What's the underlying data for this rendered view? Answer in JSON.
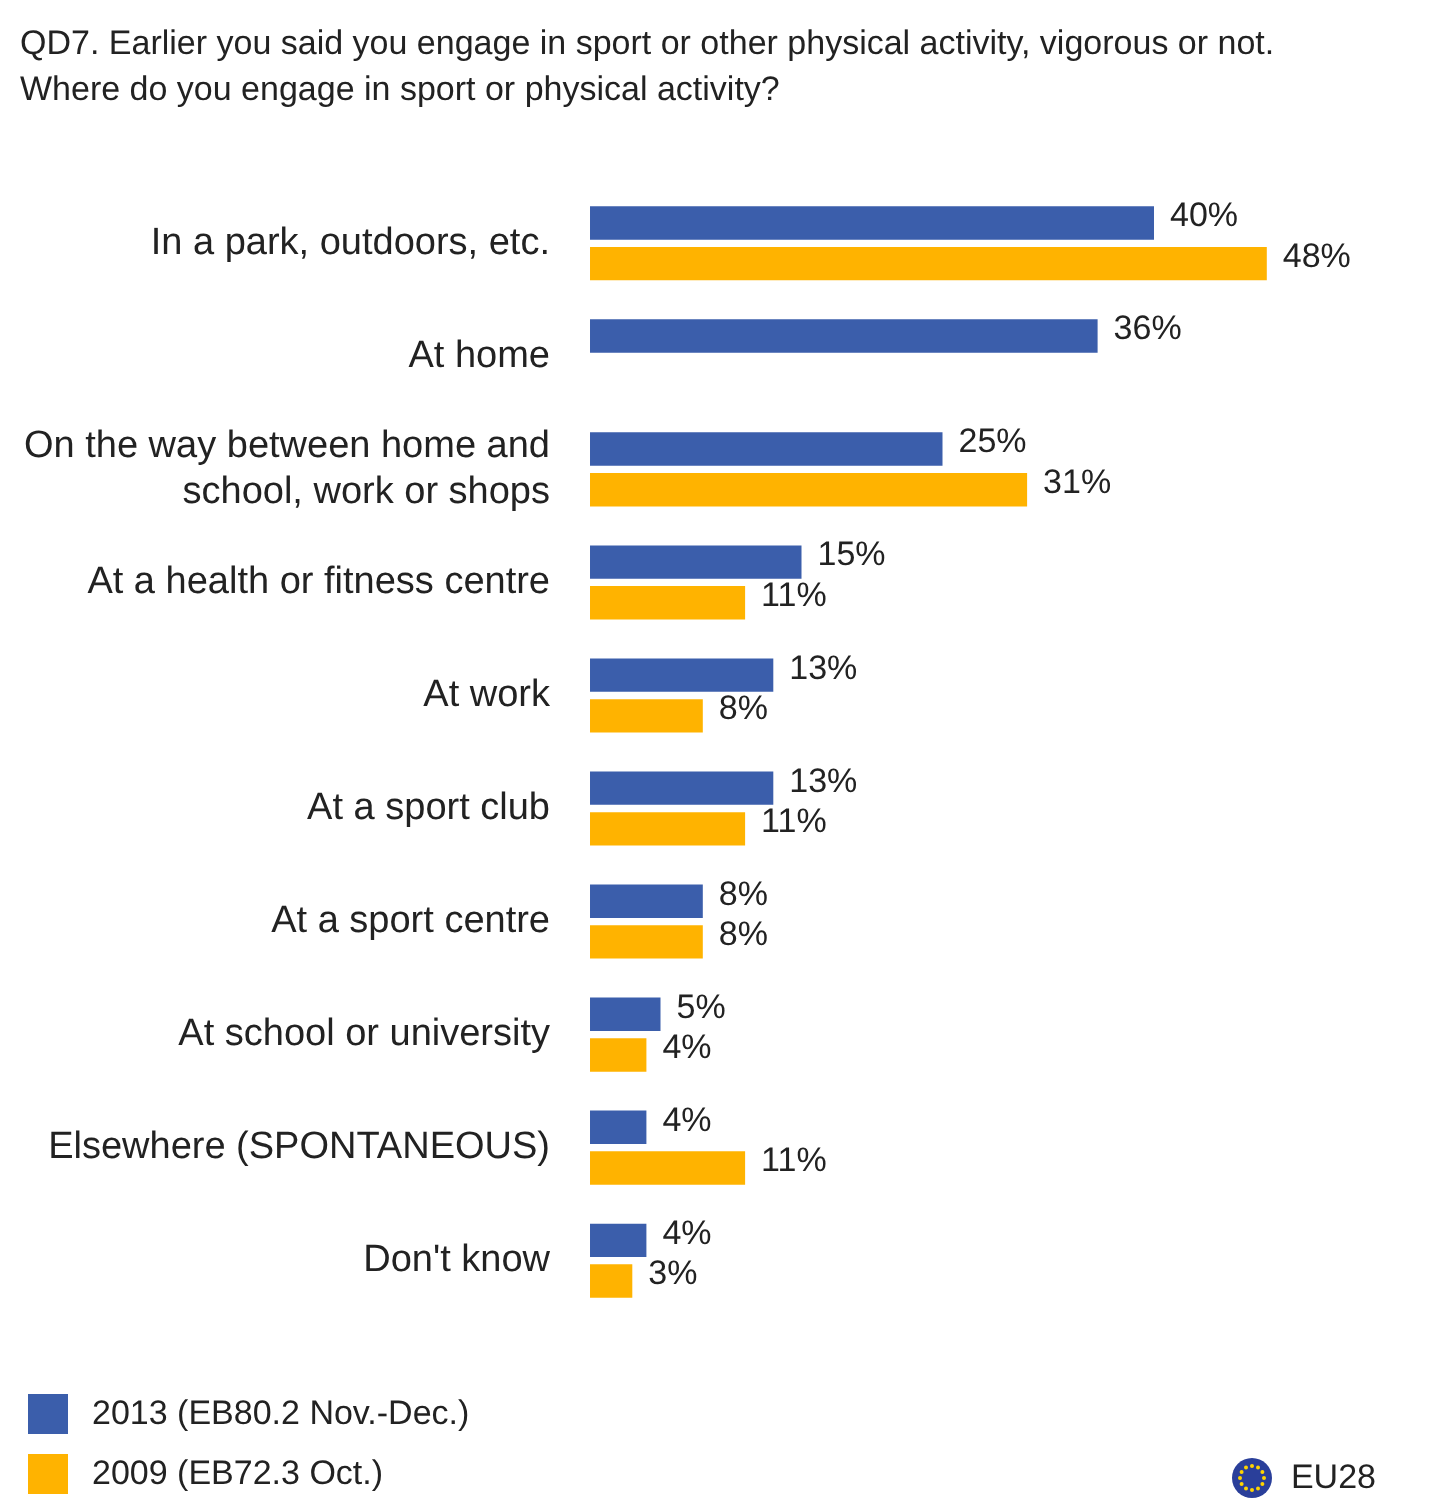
{
  "chart_data": {
    "type": "bar",
    "orientation": "horizontal",
    "title": "QD7. Earlier you said you engage in sport or other physical activity, vigorous or not. Where do you engage in sport or physical activity?",
    "categories": [
      "In a park, outdoors, etc.",
      "At home",
      "On the way between home and school, work or shops",
      "At a health or fitness centre",
      "At work",
      "At a sport club",
      "At a sport centre",
      "At school or university",
      "Elsewhere (SPONTANEOUS)",
      "Don't know"
    ],
    "series": [
      {
        "name": "2013 (EB80.2 Nov.-Dec.)",
        "color": "#3b5eab",
        "values": [
          40,
          36,
          25,
          15,
          13,
          13,
          8,
          5,
          4,
          4
        ],
        "value_labels": [
          "40%",
          "36%",
          "25%",
          "15%",
          "13%",
          "13%",
          "8%",
          "5%",
          "4%",
          "4%"
        ]
      },
      {
        "name": "2009 (EB72.3 Oct.)",
        "color": "#ffb300",
        "values": [
          48,
          null,
          31,
          11,
          8,
          11,
          8,
          4,
          11,
          3
        ],
        "value_labels": [
          "48%",
          null,
          "31%",
          "11%",
          "8%",
          "11%",
          "8%",
          "4%",
          "11%",
          "3%"
        ]
      }
    ],
    "legend": "bottom left",
    "annotations": [
      "EU28"
    ]
  }
}
